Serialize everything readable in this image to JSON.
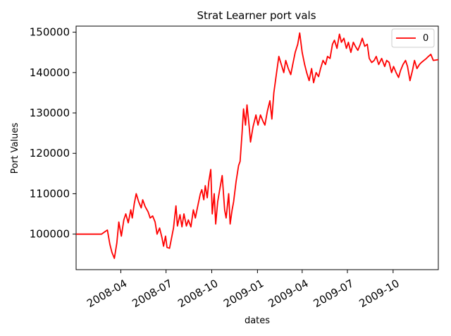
{
  "chart_data": {
    "type": "line",
    "title": "Strat Learner port vals",
    "xlabel": "dates",
    "ylabel": "Port Values",
    "xlim": [
      "2008-01-02",
      "2009-12-31"
    ],
    "ylim": [
      91200,
      151500
    ],
    "x_ticks": [
      {
        "date": "2008-04-01",
        "label": "2008-04"
      },
      {
        "date": "2008-07-01",
        "label": "2008-07"
      },
      {
        "date": "2008-10-01",
        "label": "2008-10"
      },
      {
        "date": "2009-01-01",
        "label": "2009-01"
      },
      {
        "date": "2009-04-01",
        "label": "2009-04"
      },
      {
        "date": "2009-07-01",
        "label": "2009-07"
      },
      {
        "date": "2009-10-01",
        "label": "2009-10"
      }
    ],
    "y_ticks": [
      {
        "value": 100000,
        "label": "100000"
      },
      {
        "value": 110000,
        "label": "110000"
      },
      {
        "value": 120000,
        "label": "120000"
      },
      {
        "value": 130000,
        "label": "130000"
      },
      {
        "value": 140000,
        "label": "140000"
      },
      {
        "value": 150000,
        "label": "150000"
      }
    ],
    "grid": false,
    "legend": {
      "placement": "top-right",
      "entries": [
        "0"
      ]
    },
    "colors": {
      "series": "#ff0000"
    },
    "series": [
      {
        "name": "0",
        "x": [
          "2008-01-02",
          "2008-02-22",
          "2008-02-28",
          "2008-03-05",
          "2008-03-10",
          "2008-03-14",
          "2008-03-19",
          "2008-03-24",
          "2008-03-28",
          "2008-04-02",
          "2008-04-07",
          "2008-04-11",
          "2008-04-16",
          "2008-04-21",
          "2008-04-24",
          "2008-04-28",
          "2008-05-02",
          "2008-05-07",
          "2008-05-12",
          "2008-05-15",
          "2008-05-20",
          "2008-05-26",
          "2008-05-30",
          "2008-06-04",
          "2008-06-09",
          "2008-06-13",
          "2008-06-18",
          "2008-06-23",
          "2008-06-26",
          "2008-06-30",
          "2008-07-03",
          "2008-07-08",
          "2008-07-12",
          "2008-07-16",
          "2008-07-21",
          "2008-07-24",
          "2008-07-29",
          "2008-08-02",
          "2008-08-06",
          "2008-08-11",
          "2008-08-15",
          "2008-08-20",
          "2008-08-25",
          "2008-08-29",
          "2008-09-03",
          "2008-09-08",
          "2008-09-11",
          "2008-09-15",
          "2008-09-18",
          "2008-09-22",
          "2008-09-25",
          "2008-09-29",
          "2008-10-02",
          "2008-10-06",
          "2008-10-09",
          "2008-10-13",
          "2008-10-17",
          "2008-10-22",
          "2008-10-27",
          "2008-10-30",
          "2008-11-04",
          "2008-11-07",
          "2008-11-11",
          "2008-11-14",
          "2008-11-19",
          "2008-11-24",
          "2008-11-27",
          "2008-12-01",
          "2008-12-04",
          "2008-12-08",
          "2008-12-11",
          "2008-12-15",
          "2008-12-18",
          "2008-12-23",
          "2008-12-29",
          "2009-01-02",
          "2009-01-07",
          "2009-01-12",
          "2009-01-16",
          "2009-01-21",
          "2009-01-26",
          "2009-01-30",
          "2009-02-03",
          "2009-02-09",
          "2009-02-13",
          "2009-02-18",
          "2009-02-23",
          "2009-02-27",
          "2009-03-04",
          "2009-03-09",
          "2009-03-13",
          "2009-03-18",
          "2009-03-23",
          "2009-03-27",
          "2009-04-01",
          "2009-04-06",
          "2009-04-10",
          "2009-04-15",
          "2009-04-20",
          "2009-04-24",
          "2009-04-29",
          "2009-05-04",
          "2009-05-08",
          "2009-05-13",
          "2009-05-18",
          "2009-05-22",
          "2009-05-27",
          "2009-06-01",
          "2009-06-05",
          "2009-06-10",
          "2009-06-15",
          "2009-06-19",
          "2009-06-24",
          "2009-06-29",
          "2009-07-03",
          "2009-07-08",
          "2009-07-13",
          "2009-07-17",
          "2009-07-22",
          "2009-07-27",
          "2009-07-31",
          "2009-08-05",
          "2009-08-10",
          "2009-08-14",
          "2009-08-19",
          "2009-08-24",
          "2009-08-28",
          "2009-09-02",
          "2009-09-08",
          "2009-09-14",
          "2009-09-18",
          "2009-09-23",
          "2009-09-28",
          "2009-10-02",
          "2009-10-07",
          "2009-10-12",
          "2009-10-16",
          "2009-10-21",
          "2009-10-26",
          "2009-10-30",
          "2009-11-04",
          "2009-11-09",
          "2009-11-13",
          "2009-11-18",
          "2009-11-23",
          "2009-11-27",
          "2009-12-02",
          "2009-12-07",
          "2009-12-11",
          "2009-12-16",
          "2009-12-21",
          "2009-12-31"
        ],
        "values": [
          100000,
          100000,
          100500,
          101000,
          97500,
          95500,
          94000,
          97800,
          103000,
          99500,
          103500,
          105000,
          102800,
          106000,
          104000,
          107500,
          110000,
          108000,
          106500,
          108500,
          106800,
          105500,
          104000,
          104500,
          103000,
          100000,
          101500,
          99000,
          97000,
          99500,
          96700,
          96500,
          99000,
          101500,
          107000,
          102000,
          104800,
          101800,
          105000,
          102000,
          103500,
          101800,
          106000,
          104000,
          107000,
          110000,
          111000,
          108500,
          112000,
          109000,
          113000,
          116000,
          105000,
          110000,
          102500,
          108000,
          111000,
          114500,
          106000,
          104000,
          110000,
          102500,
          106000,
          108000,
          113000,
          117000,
          118000,
          125000,
          131000,
          127000,
          132000,
          127000,
          122800,
          126500,
          129500,
          127000,
          129500,
          128000,
          127000,
          130500,
          133000,
          128500,
          135000,
          140500,
          144000,
          142000,
          140000,
          143000,
          141000,
          139500,
          142000,
          145000,
          147000,
          149800,
          145000,
          142000,
          140000,
          138000,
          141000,
          137500,
          140000,
          139000,
          141000,
          143000,
          142000,
          144000,
          143500,
          147000,
          148000,
          146000,
          149500,
          147500,
          148500,
          146000,
          147500,
          145000,
          147500,
          146500,
          145500,
          147000,
          148500,
          146500,
          147000,
          143500,
          142500,
          143000,
          144000,
          142000,
          143500,
          141500,
          143000,
          142500,
          140000,
          141500,
          140000,
          138800,
          140500,
          142000,
          143000,
          141500,
          138000,
          140500,
          143000,
          141000,
          142000,
          142500,
          143000,
          143500,
          144000,
          144500,
          143000,
          143200
        ]
      }
    ]
  }
}
